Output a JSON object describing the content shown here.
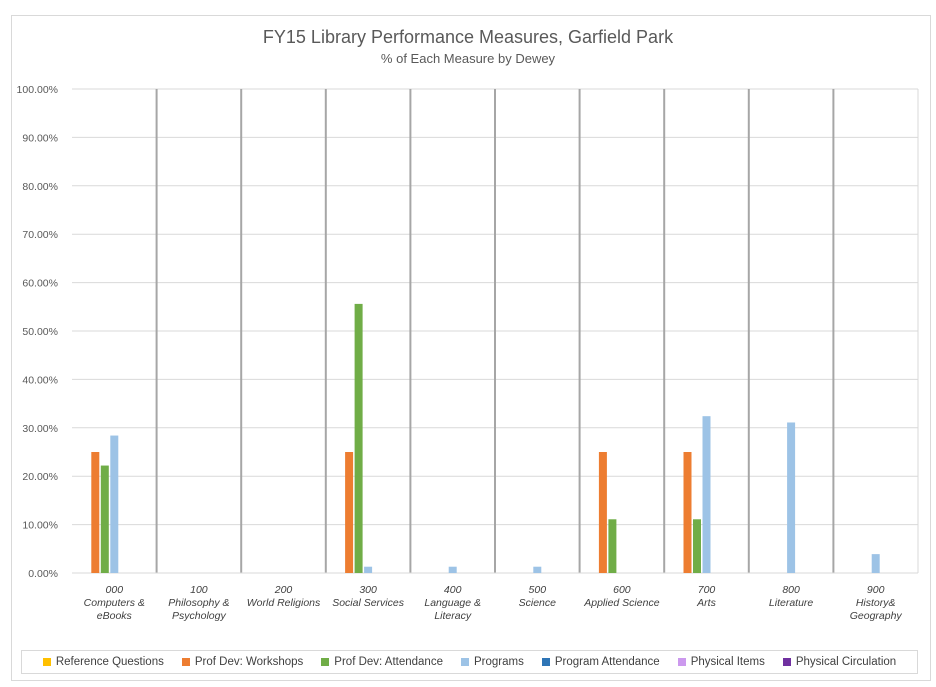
{
  "chart_data": {
    "type": "bar",
    "title": "FY15 Library Performance Measures, Garfield Park",
    "subtitle": "% of Each Measure by Dewey",
    "categories": [
      [
        "000",
        "Computers &",
        "eBooks"
      ],
      [
        "100",
        "Philosophy &",
        "Psychology"
      ],
      [
        "200",
        "World Religions"
      ],
      [
        "300",
        "Social Services"
      ],
      [
        "400",
        "Language &",
        "Literacy"
      ],
      [
        "500",
        "Science"
      ],
      [
        "600",
        "Applied Science"
      ],
      [
        "700",
        "Arts"
      ],
      [
        "800",
        "Literature"
      ],
      [
        "900",
        "History&",
        "Geography"
      ]
    ],
    "ylim": [
      0,
      100
    ],
    "yticks": [
      "0.00%",
      "10.00%",
      "20.00%",
      "30.00%",
      "40.00%",
      "50.00%",
      "60.00%",
      "70.00%",
      "80.00%",
      "90.00%",
      "100.00%"
    ],
    "series": [
      {
        "name": "Reference Questions",
        "color": "#ffc000",
        "values": [
          0,
          0,
          0,
          0,
          0,
          0,
          0,
          0,
          0,
          0
        ]
      },
      {
        "name": "Prof Dev: Workshops",
        "color": "#ed7d31",
        "values": [
          25,
          0,
          0,
          25,
          0,
          0,
          25,
          25,
          0,
          0
        ]
      },
      {
        "name": "Prof Dev: Attendance",
        "color": "#70ad47",
        "values": [
          22.2,
          0,
          0,
          55.6,
          0,
          0,
          11.1,
          11.1,
          0,
          0
        ]
      },
      {
        "name": "Programs",
        "color": "#9dc3e6",
        "values": [
          28.4,
          0,
          0,
          1.3,
          1.3,
          1.3,
          0,
          32.4,
          31.1,
          3.9
        ]
      },
      {
        "name": "Program Attendance",
        "color": "#2e75b6",
        "values": [
          0,
          0,
          0,
          0,
          0,
          0,
          0,
          0,
          0,
          0
        ]
      },
      {
        "name": "Physical Items",
        "color": "#cc99ee",
        "values": [
          0,
          0,
          0,
          0,
          0,
          0,
          0,
          0,
          0,
          0
        ]
      },
      {
        "name": "Physical Circulation",
        "color": "#7030a0",
        "values": [
          0,
          0,
          0,
          0,
          0,
          0,
          0,
          0,
          0,
          0
        ]
      }
    ],
    "grid": true,
    "legend_position": "bottom"
  }
}
